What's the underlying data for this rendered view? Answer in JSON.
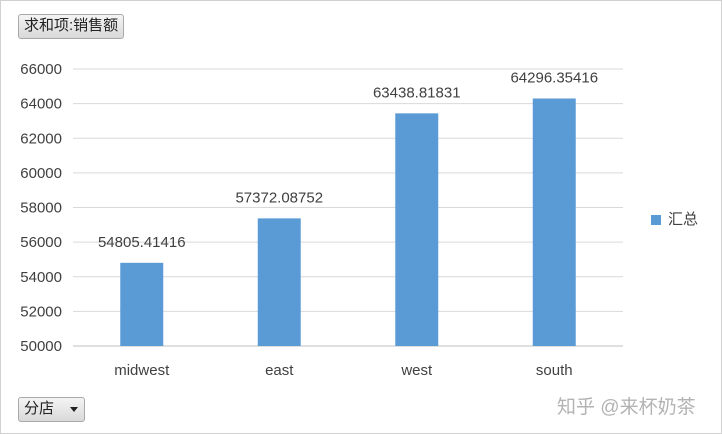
{
  "pivot": {
    "value_field": "求和项:销售额",
    "filter_field": "分店"
  },
  "legend": {
    "label": "汇总"
  },
  "watermark": "知乎 @来杯奶茶",
  "colors": {
    "bar": "#5b9bd5",
    "grid": "#d9d9d9",
    "axis": "#bfbfbf",
    "text": "#404040"
  },
  "chart_data": {
    "type": "bar",
    "categories": [
      "midwest",
      "east",
      "west",
      "south"
    ],
    "series": [
      {
        "name": "汇总",
        "values": [
          54805.41416,
          57372.08752,
          63438.81831,
          64296.35416
        ]
      }
    ],
    "data_labels": [
      "54805.41416",
      "57372.08752",
      "63438.81831",
      "64296.35416"
    ],
    "y_ticks": [
      50000,
      52000,
      54000,
      56000,
      58000,
      60000,
      62000,
      64000,
      66000
    ],
    "ylim": [
      50000,
      66000
    ],
    "grid": true,
    "legend_position": "right"
  }
}
